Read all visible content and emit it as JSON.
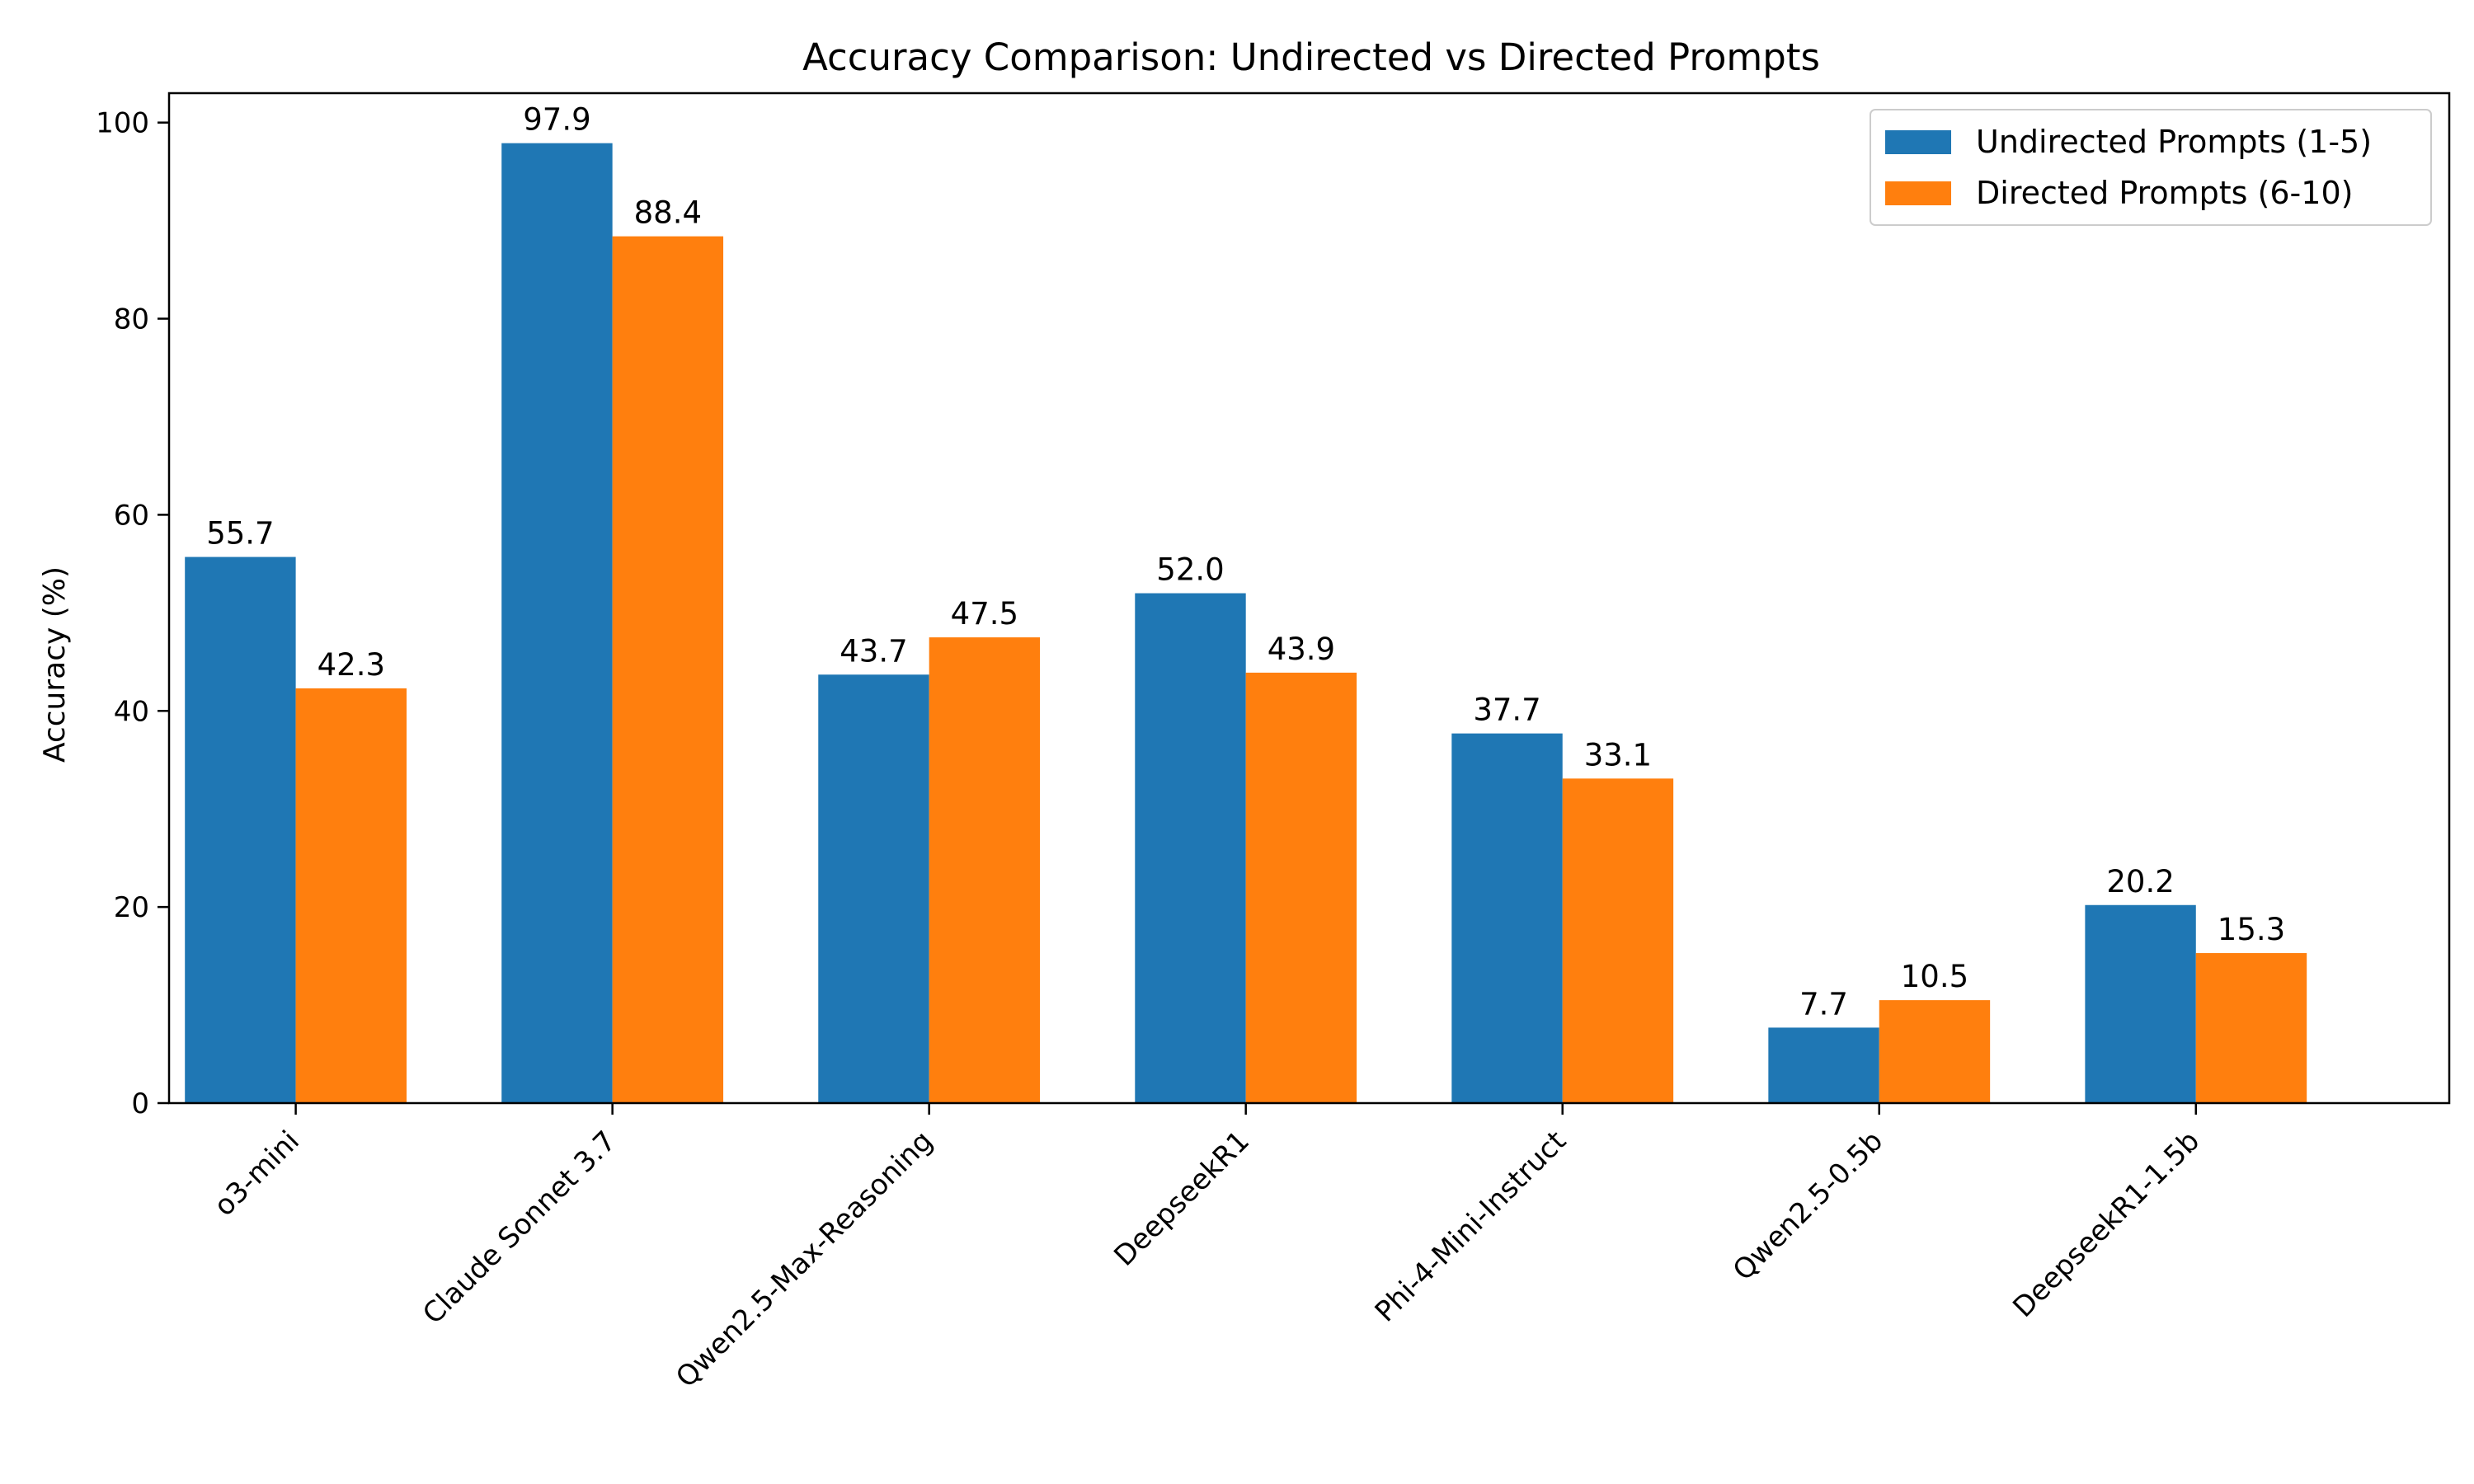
{
  "chart_data": {
    "type": "bar",
    "title": "Accuracy Comparison: Undirected vs Directed Prompts",
    "xlabel": "",
    "ylabel": "Accuracy (%)",
    "ylim": [
      0,
      103
    ],
    "yticks": [
      0,
      20,
      40,
      60,
      80,
      100
    ],
    "grid": false,
    "legend_position": "top-right",
    "categories": [
      "o3-mini",
      "Claude Sonnet 3.7",
      "Qwen2.5-Max-Reasoning",
      "DeepseekR1",
      "Phi-4-Mini-Instruct",
      "Qwen2.5-0.5b",
      "DeepseekR1-1.5b"
    ],
    "series": [
      {
        "name": "Undirected Prompts (1-5)",
        "color": "#1f77b4",
        "values": [
          55.7,
          97.9,
          43.7,
          52.0,
          37.7,
          7.7,
          20.2
        ]
      },
      {
        "name": "Directed Prompts (6-10)",
        "color": "#ff7f0e",
        "values": [
          42.3,
          88.4,
          47.5,
          43.9,
          33.1,
          10.5,
          15.3
        ]
      }
    ]
  }
}
